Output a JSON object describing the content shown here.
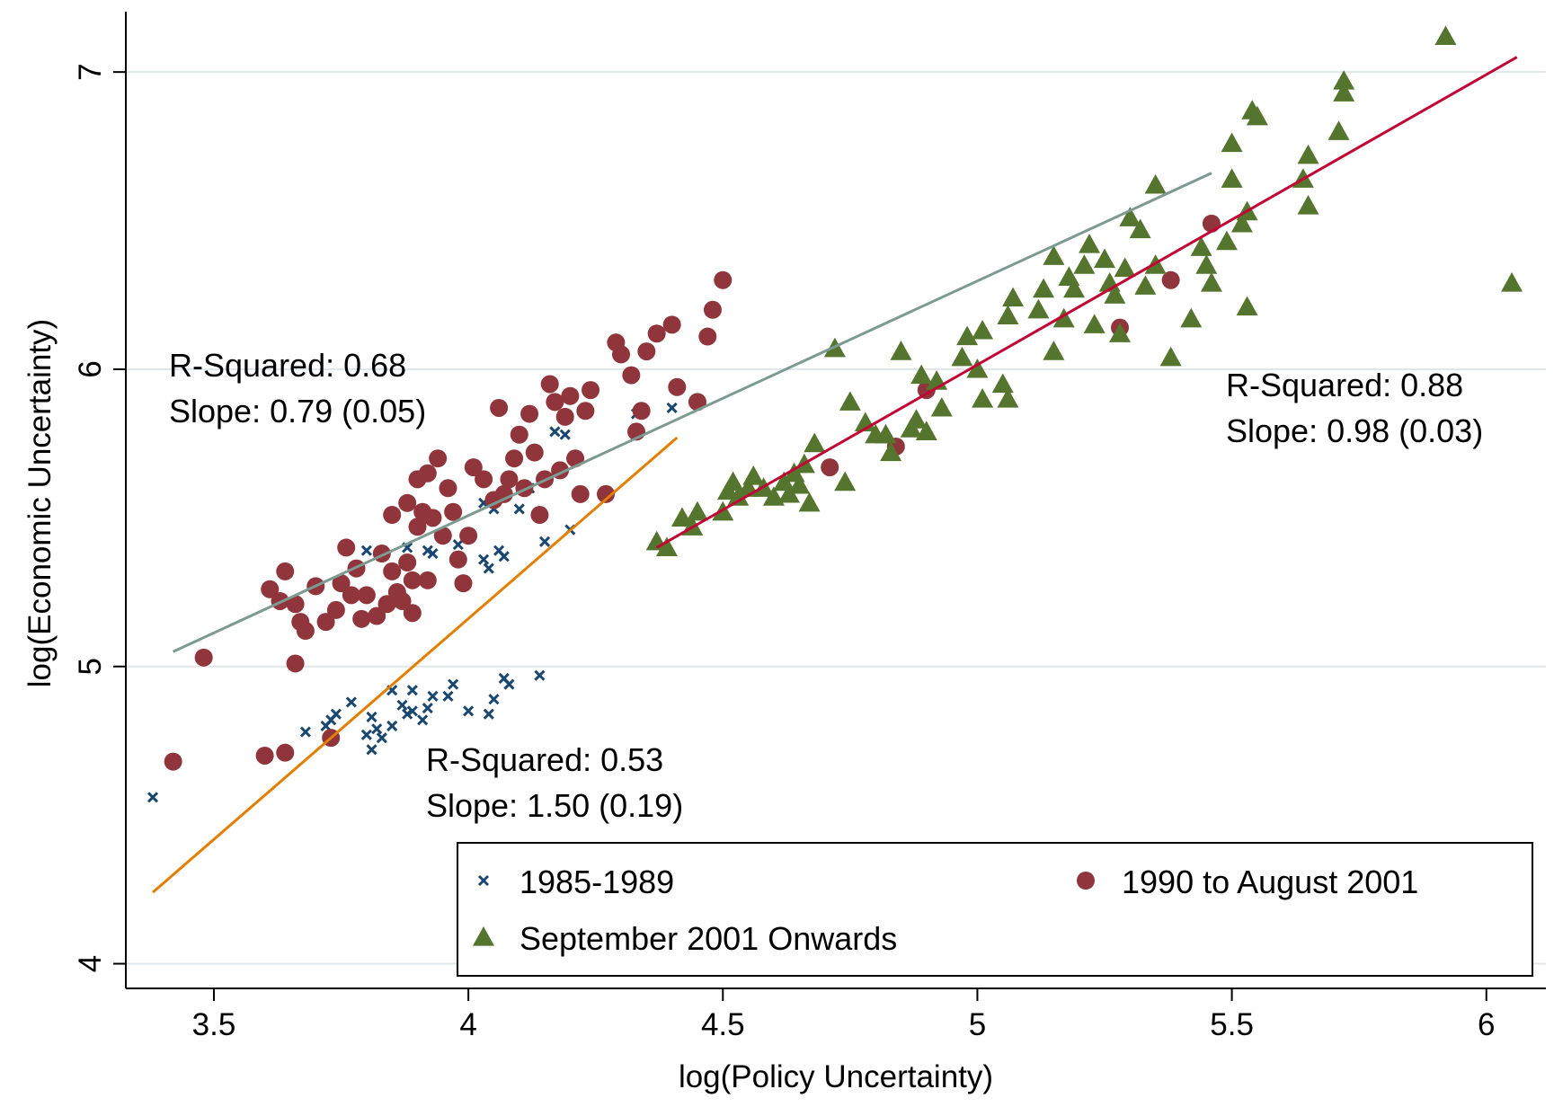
{
  "chart_data": {
    "type": "scatter",
    "x_label": "log(Policy Uncertainty)",
    "y_label": "log(Economic Uncertainty)",
    "xlim": [
      3.327,
      6.117
    ],
    "ylim": [
      3.917,
      7.203
    ],
    "xticks": [
      3.5,
      4,
      4.5,
      5,
      5.5,
      6
    ],
    "yticks": [
      4,
      5,
      6,
      7
    ],
    "grid": true,
    "legend": "lower right",
    "series": [
      {
        "name": "1985-1989",
        "color": "#1a476f",
        "marker": "x",
        "x": [
          3.38,
          3.68,
          3.72,
          3.73,
          3.74,
          3.77,
          3.8,
          3.81,
          3.82,
          3.81,
          3.83,
          3.85,
          3.85,
          3.87,
          3.88,
          3.89,
          3.89,
          3.91,
          3.92,
          3.93,
          3.96,
          3.97,
          4.0,
          4.04,
          4.05,
          4.07,
          4.08,
          4.14,
          3.8,
          3.88,
          3.92,
          3.93,
          3.98,
          4.03,
          4.04,
          4.06,
          4.07,
          4.03,
          4.05,
          4.1,
          4.12,
          4.15,
          4.17,
          4.19,
          4.2,
          4.33,
          4.4
        ],
        "y": [
          4.56,
          4.78,
          4.8,
          4.82,
          4.84,
          4.88,
          4.77,
          4.72,
          4.79,
          4.83,
          4.76,
          4.8,
          4.92,
          4.87,
          4.84,
          4.85,
          4.92,
          4.82,
          4.86,
          4.9,
          4.9,
          4.94,
          4.85,
          4.84,
          4.89,
          4.96,
          4.94,
          4.97,
          5.39,
          5.4,
          5.39,
          5.38,
          5.41,
          5.36,
          5.33,
          5.39,
          5.37,
          5.55,
          5.53,
          5.53,
          5.6,
          5.42,
          5.79,
          5.78,
          5.46,
          5.85,
          5.87
        ]
      },
      {
        "name": "1990 to August 2001",
        "color": "#90353b",
        "marker": "circle",
        "x": [
          3.42,
          3.48,
          3.6,
          3.64,
          3.73,
          3.66,
          3.61,
          3.63,
          3.64,
          3.66,
          3.67,
          3.68,
          3.7,
          3.72,
          3.74,
          3.75,
          3.76,
          3.77,
          3.78,
          3.79,
          3.8,
          3.82,
          3.83,
          3.84,
          3.85,
          3.85,
          3.86,
          3.87,
          3.88,
          3.88,
          3.89,
          3.89,
          3.9,
          3.9,
          3.91,
          3.92,
          3.92,
          3.93,
          3.94,
          3.95,
          3.96,
          3.97,
          3.98,
          3.99,
          4.0,
          4.01,
          4.03,
          4.05,
          4.06,
          4.07,
          4.08,
          4.09,
          4.1,
          4.11,
          4.12,
          4.13,
          4.14,
          4.15,
          4.16,
          4.17,
          4.18,
          4.19,
          4.2,
          4.21,
          4.22,
          4.23,
          4.24,
          4.27,
          4.29,
          4.3,
          4.32,
          4.33,
          4.34,
          4.35,
          4.37,
          4.4,
          4.41,
          4.45,
          4.47,
          4.48,
          4.5,
          4.71,
          4.84,
          4.9,
          5.28,
          5.38,
          5.46
        ],
        "y": [
          4.68,
          5.03,
          4.7,
          4.71,
          4.76,
          5.01,
          5.26,
          5.22,
          5.32,
          5.21,
          5.15,
          5.12,
          5.27,
          5.15,
          5.19,
          5.28,
          5.4,
          5.24,
          5.33,
          5.16,
          5.24,
          5.17,
          5.38,
          5.21,
          5.32,
          5.51,
          5.25,
          5.22,
          5.35,
          5.55,
          5.18,
          5.29,
          5.47,
          5.63,
          5.52,
          5.29,
          5.65,
          5.5,
          5.7,
          5.44,
          5.6,
          5.52,
          5.36,
          5.28,
          5.44,
          5.67,
          5.63,
          5.56,
          5.87,
          5.58,
          5.63,
          5.7,
          5.78,
          5.6,
          5.85,
          5.72,
          5.51,
          5.63,
          5.95,
          5.89,
          5.66,
          5.84,
          5.91,
          5.7,
          5.58,
          5.86,
          5.93,
          5.58,
          6.09,
          6.05,
          5.98,
          5.79,
          5.86,
          6.06,
          6.12,
          6.15,
          5.94,
          5.89,
          6.11,
          6.2,
          6.3,
          5.67,
          5.74,
          5.93,
          6.14,
          6.3,
          6.49
        ]
      },
      {
        "name": "September 2001 Onwards",
        "color": "#55752f",
        "marker": "triangle",
        "x": [
          4.37,
          4.39,
          4.42,
          4.44,
          4.45,
          4.5,
          4.51,
          4.52,
          4.53,
          4.55,
          4.56,
          4.58,
          4.6,
          4.62,
          4.63,
          4.64,
          4.65,
          4.66,
          4.67,
          4.68,
          4.72,
          4.74,
          4.75,
          4.78,
          4.8,
          4.82,
          4.83,
          4.85,
          4.87,
          4.88,
          4.89,
          4.9,
          4.92,
          4.93,
          4.97,
          4.98,
          5.0,
          5.01,
          5.01,
          5.05,
          5.06,
          5.06,
          5.07,
          5.12,
          5.13,
          5.15,
          5.15,
          5.17,
          5.18,
          5.19,
          5.21,
          5.22,
          5.23,
          5.25,
          5.26,
          5.27,
          5.28,
          5.29,
          5.3,
          5.32,
          5.33,
          5.35,
          5.35,
          5.38,
          5.42,
          5.44,
          5.45,
          5.46,
          5.49,
          5.5,
          5.5,
          5.52,
          5.53,
          5.53,
          5.54,
          5.55,
          5.64,
          5.65,
          5.65,
          5.71,
          5.72,
          5.72,
          5.92,
          6.05
        ],
        "y": [
          5.42,
          5.4,
          5.5,
          5.47,
          5.52,
          5.52,
          5.59,
          5.62,
          5.57,
          5.6,
          5.64,
          5.6,
          5.57,
          5.62,
          5.58,
          5.65,
          5.61,
          5.68,
          5.55,
          5.75,
          6.07,
          5.62,
          5.89,
          5.82,
          5.78,
          5.78,
          5.72,
          6.06,
          5.8,
          5.83,
          5.98,
          5.79,
          5.96,
          5.87,
          6.04,
          6.11,
          6.0,
          6.13,
          5.9,
          5.95,
          5.9,
          6.18,
          6.24,
          6.2,
          6.27,
          6.06,
          6.38,
          6.17,
          6.31,
          6.27,
          6.35,
          6.42,
          6.15,
          6.37,
          6.29,
          6.25,
          6.12,
          6.34,
          6.51,
          6.47,
          6.28,
          6.35,
          6.62,
          6.04,
          6.17,
          6.41,
          6.35,
          6.29,
          6.43,
          6.64,
          6.76,
          6.49,
          6.53,
          6.21,
          6.87,
          6.85,
          6.64,
          6.72,
          6.55,
          6.8,
          6.97,
          6.93,
          7.12,
          6.29
        ]
      }
    ],
    "fit_lines": [
      {
        "color": "#7c9a91",
        "x": [
          3.42,
          5.46
        ],
        "y": [
          5.05,
          6.66
        ]
      },
      {
        "color": "#e37e00",
        "x": [
          3.38,
          4.41
        ],
        "y": [
          4.24,
          5.77
        ]
      },
      {
        "color": "#c10534",
        "x": [
          4.37,
          6.06
        ],
        "y": [
          5.4,
          7.05
        ]
      }
    ],
    "annotations": [
      [
        "R-Squared:  0.68",
        "Slope: 0.79 (0.05)"
      ],
      [
        "R-Squared:  0.53",
        "Slope: 1.50 (0.19)"
      ],
      [
        "R-Squared:  0.88",
        "Slope: 0.98 (0.03)"
      ]
    ]
  }
}
